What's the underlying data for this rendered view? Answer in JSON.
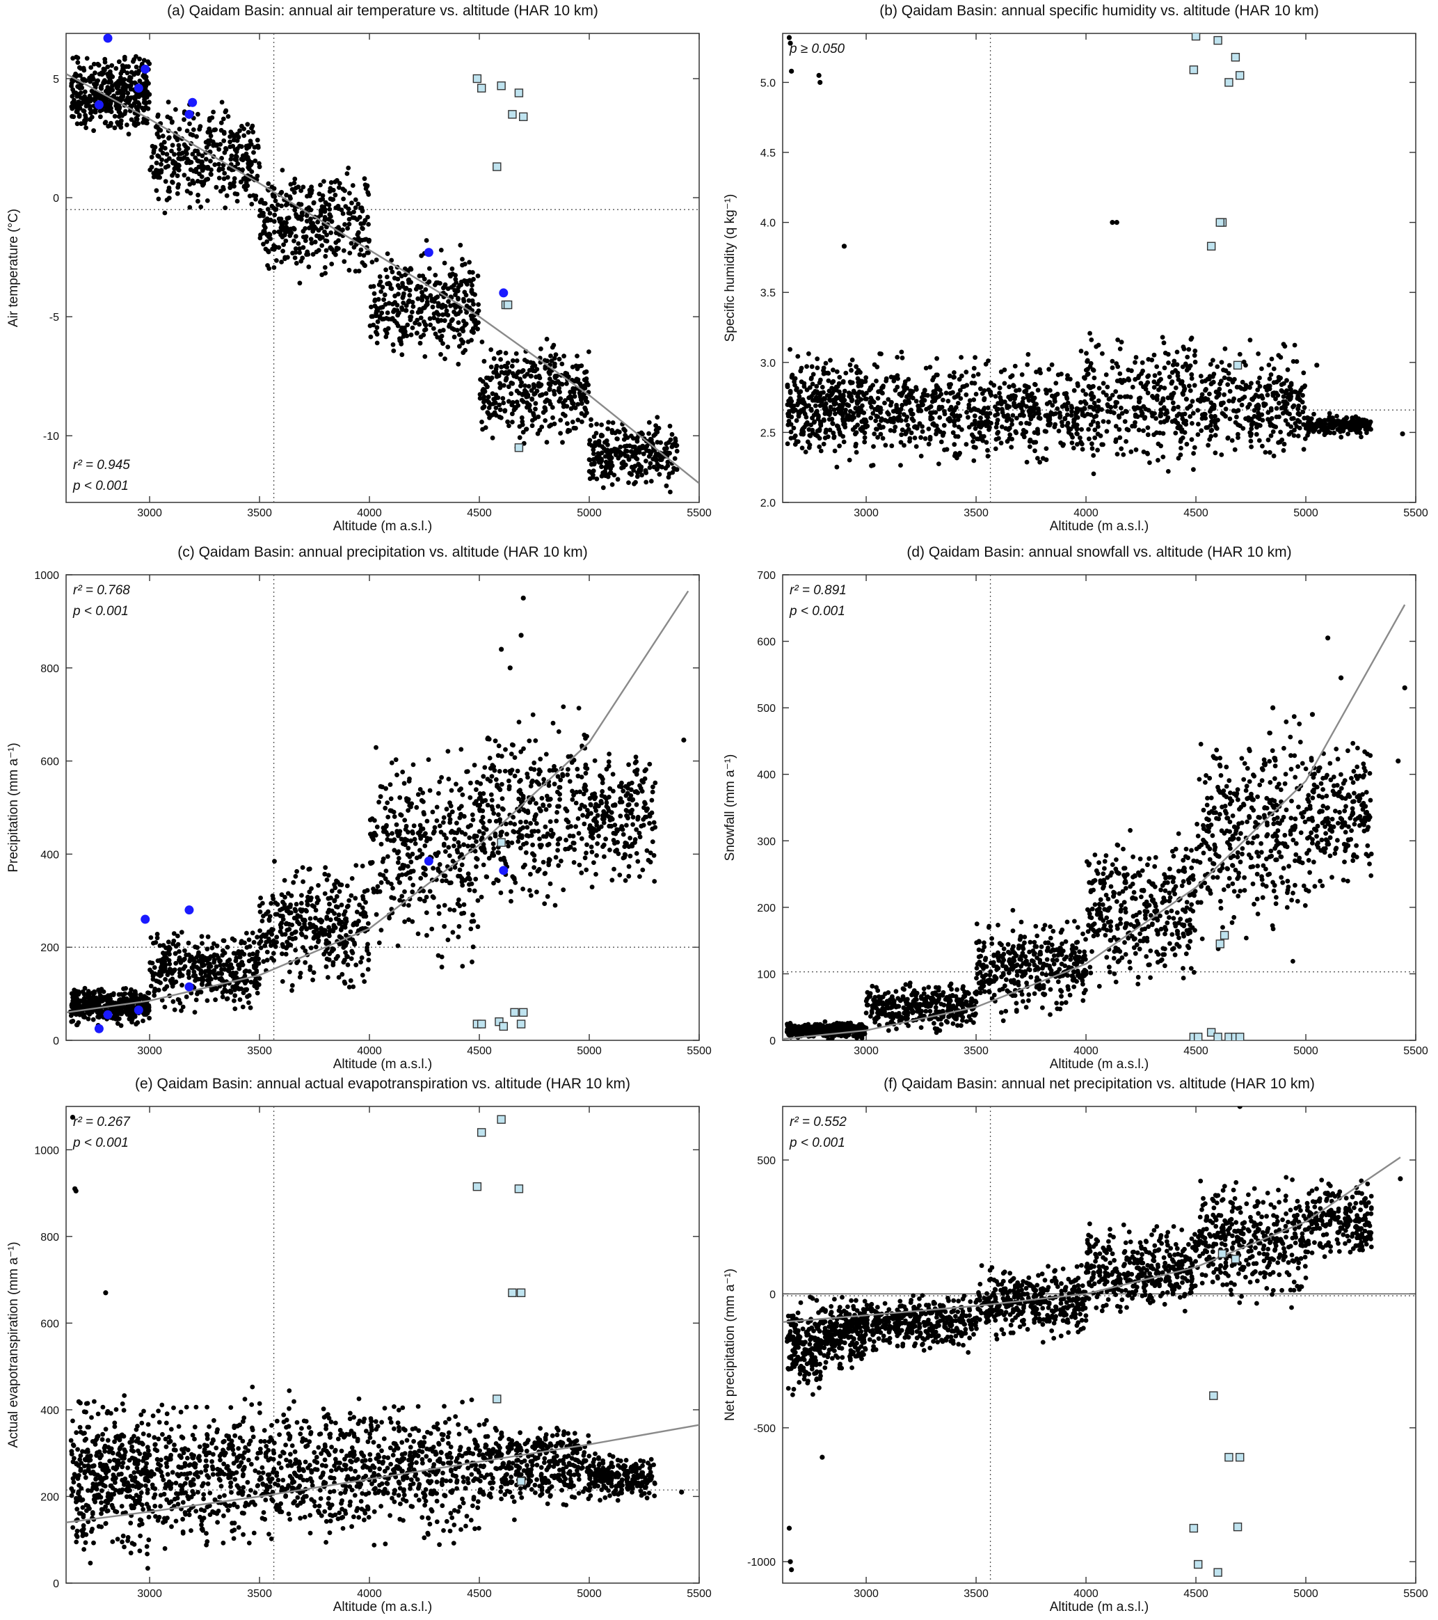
{
  "figure": {
    "panels": [
      {
        "id": "a",
        "title": "(a) Qaidam Basin: annual air temperature vs. altitude (HAR 10 km)",
        "xlabel": "Altitude (m a.s.l.)",
        "ylabel": "Air temperature (°C)",
        "stat_r2": "r² = 0.945",
        "stat_p": "p < 0.001",
        "stats_position": "bottom-left",
        "xticks": [
          3000,
          3500,
          4000,
          4500,
          5000,
          5500
        ],
        "yticks": [
          -10,
          -5,
          0,
          5
        ],
        "ref_x": 3565,
        "ref_y": -0.5
      },
      {
        "id": "b",
        "title": "(b) Qaidam Basin: annual specific humidity vs. altitude (HAR 10 km)",
        "xlabel": "Altitude (m a.s.l.)",
        "ylabel": "Specific humidity (q kg⁻¹)",
        "stat_r2": "",
        "stat_p": "p ≥ 0.050",
        "stats_position": "top-left",
        "xticks": [
          3000,
          3500,
          4000,
          4500,
          5000,
          5500
        ],
        "yticks": [
          "2.0",
          "2.5",
          "3.0",
          "3.5",
          "4.0",
          "4.5",
          "5.0"
        ],
        "ref_x": 3565,
        "ref_y": 2.66
      },
      {
        "id": "c",
        "title": "(c) Qaidam Basin: annual precipitation vs. altitude (HAR 10 km)",
        "xlabel": "Altitude (m a.s.l.)",
        "ylabel": "Precipitation (mm a⁻¹)",
        "stat_r2": "r² = 0.768",
        "stat_p": "p < 0.001",
        "stats_position": "top-left",
        "xticks": [
          3000,
          3500,
          4000,
          4500,
          5000,
          5500
        ],
        "yticks": [
          0,
          200,
          400,
          600,
          800,
          1000
        ],
        "ref_x": 3565,
        "ref_y": 200
      },
      {
        "id": "d",
        "title": "(d) Qaidam Basin: annual snowfall vs. altitude (HAR 10 km)",
        "xlabel": "Altitude (m a.s.l.)",
        "ylabel": "Snowfall (mm a⁻¹)",
        "stat_r2": "r² = 0.891",
        "stat_p": "p < 0.001",
        "stats_position": "top-left",
        "xticks": [
          3000,
          3500,
          4000,
          4500,
          5000,
          5500
        ],
        "yticks": [
          0,
          100,
          200,
          300,
          400,
          500,
          600,
          700
        ],
        "ref_x": 3565,
        "ref_y": 103
      },
      {
        "id": "e",
        "title": "(e) Qaidam Basin: annual actual evapotranspiration vs. altitude (HAR 10 km)",
        "xlabel": "Altitude (m a.s.l.)",
        "ylabel": "Actual evapotranspiration (mm a⁻¹)",
        "stat_r2": "r² = 0.267",
        "stat_p": "p < 0.001",
        "stats_position": "top-left",
        "xticks": [
          3000,
          3500,
          4000,
          4500,
          5000,
          5500
        ],
        "yticks": [
          0,
          200,
          400,
          600,
          800,
          1000
        ],
        "ref_x": 3565,
        "ref_y": 215
      },
      {
        "id": "f",
        "title": "(f) Qaidam Basin: annual net precipitation vs. altitude (HAR 10 km)",
        "xlabel": "Altitude (m a.s.l.)",
        "ylabel": "Net precipitation (mm a⁻¹)",
        "stat_r2": "r² = 0.552",
        "stat_p": "p < 0.001",
        "stats_position": "top-left",
        "xticks": [
          3000,
          3500,
          4000,
          4500,
          5000,
          5500
        ],
        "yticks": [
          -1000,
          -500,
          0,
          500
        ],
        "ref_x": 3565,
        "ref_y": -7
      }
    ]
  },
  "chart_data": [
    {
      "type": "scatter",
      "panel": "a",
      "title": "(a) Qaidam Basin: annual air temperature vs. altitude (HAR 10 km)",
      "xlabel": "Altitude (m a.s.l.)",
      "ylabel": "Air temperature (°C)",
      "xlim": [
        2620,
        5500
      ],
      "ylim": [
        -12.8,
        6.9
      ],
      "grid": false,
      "fit": {
        "x": [
          2620,
          3000,
          3500,
          4000,
          4500,
          5000,
          5500
        ],
        "y": [
          5.2,
          3.3,
          0.6,
          -2.2,
          -5.0,
          -8.3,
          -12.0
        ]
      },
      "ref_lines": {
        "x": 3565,
        "y": -0.5
      },
      "stations": {
        "x": [
          2810,
          2980,
          2950,
          2770,
          3195,
          3180,
          4270,
          4610
        ],
        "y": [
          6.7,
          5.4,
          4.6,
          3.9,
          4.0,
          3.5,
          -2.3,
          -4.0
        ]
      },
      "outlier_cells": {
        "x": [
          4490,
          4510,
          4600,
          4680,
          4650,
          4700,
          4580,
          4620,
          4630,
          4680
        ],
        "y": [
          5.0,
          4.6,
          4.7,
          4.4,
          3.5,
          3.4,
          1.3,
          -4.5,
          -4.5,
          -10.5
        ]
      },
      "cloud": {
        "mode": "band",
        "n": 1900,
        "bands": [
          [
            2640,
            3000,
            2.3,
            6.5
          ],
          [
            3000,
            3500,
            -1.2,
            4.5
          ],
          [
            3500,
            4000,
            -4.0,
            1.8
          ],
          [
            4000,
            4500,
            -7.5,
            -1.5
          ],
          [
            4500,
            5000,
            -10.8,
            -5.5
          ],
          [
            5000,
            5400,
            -12.5,
            -9.0
          ]
        ]
      }
    },
    {
      "type": "scatter",
      "panel": "b",
      "title": "(b) Qaidam Basin: annual specific humidity vs. altitude (HAR 10 km)",
      "xlabel": "Altitude (m a.s.l.)",
      "ylabel": "Specific humidity (q kg⁻¹)",
      "xlim": [
        2620,
        5500
      ],
      "ylim": [
        2.0,
        5.35
      ],
      "grid": false,
      "ref_lines": {
        "x": 3565,
        "y": 2.66
      },
      "outlier_cells": {
        "x": [
          4500,
          4600,
          4680,
          4490,
          4700,
          4650,
          4620,
          4610,
          4570,
          4690
        ],
        "y": [
          5.33,
          5.3,
          5.18,
          5.09,
          5.05,
          5.0,
          4.0,
          4.0,
          3.83,
          2.98
        ]
      },
      "extra_points": {
        "x": [
          2650,
          2655,
          2660,
          2785,
          2790,
          2900,
          4120,
          4140,
          5050,
          5440
        ],
        "y": [
          5.32,
          5.28,
          5.08,
          5.05,
          5.0,
          3.83,
          4.0,
          4.0,
          2.98,
          2.49
        ]
      },
      "cloud": {
        "mode": "band",
        "n": 1700,
        "bands": [
          [
            2640,
            3000,
            2.2,
            3.15
          ],
          [
            3000,
            3500,
            2.2,
            3.15
          ],
          [
            3500,
            4000,
            2.2,
            3.1
          ],
          [
            4000,
            4500,
            2.1,
            3.35
          ],
          [
            4500,
            5000,
            2.2,
            3.2
          ],
          [
            5000,
            5300,
            2.45,
            2.65
          ]
        ]
      }
    },
    {
      "type": "scatter",
      "panel": "c",
      "title": "(c) Qaidam Basin: annual precipitation vs. altitude (HAR 10 km)",
      "xlabel": "Altitude (m a.s.l.)",
      "ylabel": "Precipitation (mm a⁻¹)",
      "xlim": [
        2620,
        5500
      ],
      "ylim": [
        0,
        1000
      ],
      "grid": false,
      "fit": {
        "x": [
          2620,
          3000,
          3500,
          4000,
          4500,
          5000,
          5450
        ],
        "y": [
          60,
          85,
          140,
          240,
          420,
          640,
          965
        ]
      },
      "ref_lines": {
        "x": 3565,
        "y": 200
      },
      "stations": {
        "x": [
          2980,
          3180,
          3180,
          2810,
          2950,
          2770,
          4270,
          4610
        ],
        "y": [
          260,
          280,
          115,
          55,
          65,
          25,
          385,
          365
        ]
      },
      "outlier_cells": {
        "x": [
          4490,
          4510,
          4590,
          4610,
          4660,
          4690,
          4700,
          4600
        ],
        "y": [
          35,
          35,
          40,
          30,
          60,
          35,
          60,
          425
        ]
      },
      "extra_points": {
        "x": [
          4700,
          4690,
          4600,
          4640,
          5430
        ],
        "y": [
          950,
          870,
          840,
          800,
          645
        ]
      },
      "cloud": {
        "mode": "band",
        "n": 1900,
        "bands": [
          [
            2640,
            3000,
            25,
            120
          ],
          [
            3000,
            3500,
            40,
            260
          ],
          [
            3500,
            4000,
            80,
            420
          ],
          [
            4000,
            4500,
            120,
            680
          ],
          [
            4500,
            5000,
            220,
            760
          ],
          [
            5000,
            5300,
            300,
            650
          ]
        ]
      }
    },
    {
      "type": "scatter",
      "panel": "d",
      "title": "(d) Qaidam Basin: annual snowfall vs. altitude (HAR 10 km)",
      "xlabel": "Altitude (m a.s.l.)",
      "ylabel": "Snowfall (mm a⁻¹)",
      "xlim": [
        2620,
        5500
      ],
      "ylim": [
        0,
        700
      ],
      "grid": false,
      "fit": {
        "x": [
          2620,
          3000,
          3500,
          4000,
          4500,
          5000,
          5450
        ],
        "y": [
          2,
          15,
          50,
          115,
          230,
          390,
          655
        ]
      },
      "ref_lines": {
        "x": 3565,
        "y": 103
      },
      "outlier_cells": {
        "x": [
          4610,
          4630,
          4490,
          4510,
          4570,
          4600,
          4650,
          4680,
          4700
        ],
        "y": [
          145,
          158,
          5,
          5,
          12,
          5,
          5,
          5,
          5
        ]
      },
      "extra_points": {
        "x": [
          5100,
          5160,
          5420,
          5450,
          5030,
          4850
        ],
        "y": [
          605,
          545,
          420,
          530,
          490,
          500
        ]
      },
      "cloud": {
        "mode": "band",
        "n": 1900,
        "bands": [
          [
            2640,
            3000,
            0,
            30
          ],
          [
            3000,
            3500,
            5,
            95
          ],
          [
            3500,
            4000,
            20,
            200
          ],
          [
            4000,
            4500,
            60,
            330
          ],
          [
            4500,
            5000,
            110,
            510
          ],
          [
            5000,
            5300,
            200,
            480
          ]
        ]
      }
    },
    {
      "type": "scatter",
      "panel": "e",
      "title": "(e) Qaidam Basin: annual actual evapotranspiration vs. altitude (HAR 10 km)",
      "xlabel": "Altitude (m a.s.l.)",
      "ylabel": "Actual evapotranspiration (mm a⁻¹)",
      "xlim": [
        2620,
        5500
      ],
      "ylim": [
        0,
        1100
      ],
      "grid": false,
      "fit": {
        "x": [
          2620,
          3000,
          3500,
          4000,
          4500,
          5000,
          5500
        ],
        "y": [
          140,
          165,
          200,
          240,
          280,
          320,
          365
        ]
      },
      "ref_lines": {
        "x": 3565,
        "y": 215
      },
      "outlier_cells": {
        "x": [
          4600,
          4510,
          4490,
          4680,
          4650,
          4690,
          4580,
          4690
        ],
        "y": [
          1070,
          1040,
          915,
          910,
          670,
          670,
          425,
          235
        ]
      },
      "extra_points": {
        "x": [
          2650,
          2660,
          2665,
          2800,
          5420
        ],
        "y": [
          1075,
          910,
          905,
          670,
          210
        ]
      },
      "cloud": {
        "mode": "band",
        "n": 1900,
        "bands": [
          [
            2640,
            2800,
            10,
            480
          ],
          [
            2800,
            3000,
            20,
            460
          ],
          [
            3000,
            3500,
            40,
            470
          ],
          [
            3500,
            4000,
            40,
            480
          ],
          [
            4000,
            4500,
            60,
            470
          ],
          [
            4500,
            5000,
            140,
            400
          ],
          [
            5000,
            5300,
            180,
            310
          ]
        ]
      }
    },
    {
      "type": "scatter",
      "panel": "f",
      "title": "(f) Qaidam Basin: annual net precipitation vs. altitude (HAR 10 km)",
      "xlabel": "Altitude (m a.s.l.)",
      "ylabel": "Net precipitation (mm a⁻¹)",
      "xlim": [
        2620,
        5500
      ],
      "ylim": [
        -1080,
        700
      ],
      "grid": false,
      "fit": {
        "x": [
          2620,
          3000,
          3500,
          4000,
          4500,
          5000,
          5430
        ],
        "y": [
          -105,
          -80,
          -45,
          0,
          100,
          270,
          510
        ]
      },
      "ref_lines": {
        "x": 3565,
        "y": -7
      },
      "zero_line": 0,
      "outlier_cells": {
        "x": [
          4620,
          4680,
          4580,
          4650,
          4700,
          4690,
          4490,
          4510,
          4600
        ],
        "y": [
          150,
          130,
          -380,
          -610,
          -610,
          -870,
          -875,
          -1010,
          -1040
        ]
      },
      "extra_points": {
        "x": [
          2650,
          2655,
          2660,
          2800,
          4700,
          5430
        ],
        "y": [
          -875,
          -1000,
          -1030,
          -610,
          700,
          430
        ]
      },
      "cloud": {
        "mode": "band",
        "n": 1900,
        "bands": [
          [
            2640,
            2800,
            -420,
            20
          ],
          [
            2800,
            3000,
            -300,
            20
          ],
          [
            3000,
            3500,
            -240,
            20
          ],
          [
            3500,
            4000,
            -200,
            130
          ],
          [
            4000,
            4500,
            -130,
            300
          ],
          [
            4500,
            5000,
            -100,
            490
          ],
          [
            5000,
            5300,
            70,
            470
          ]
        ]
      }
    }
  ]
}
